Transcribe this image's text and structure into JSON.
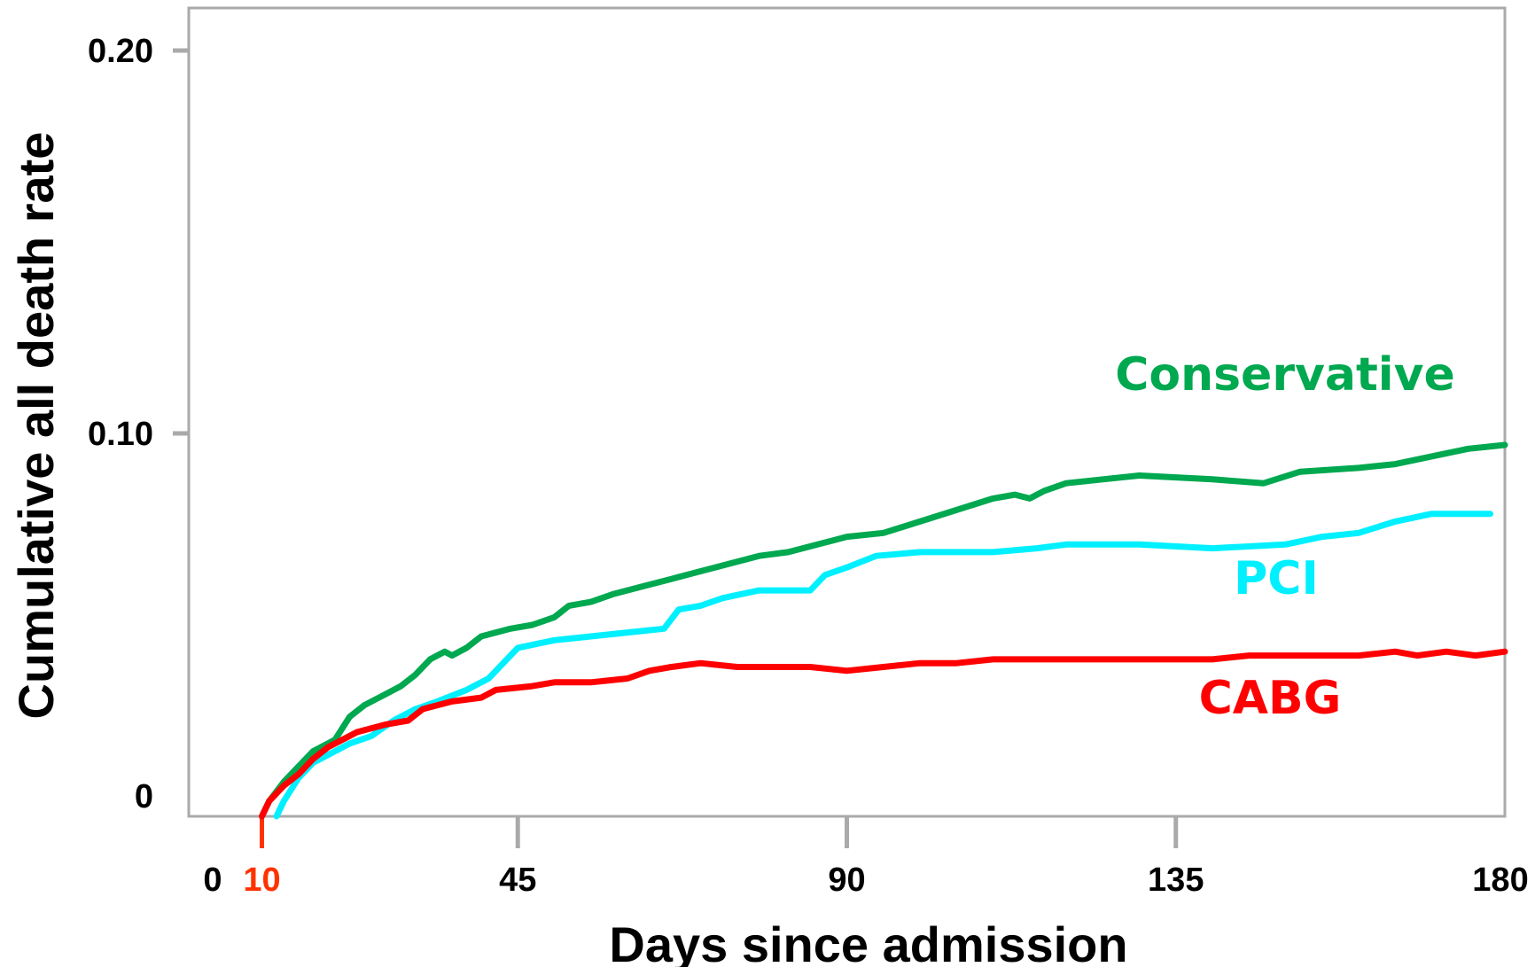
{
  "chart_data": {
    "type": "line",
    "title": "",
    "xlabel": "Days since admission",
    "ylabel": "Cumulative all death rate",
    "xlim": [
      0,
      180
    ],
    "ylim": [
      0,
      0.2
    ],
    "x_ticks": [
      {
        "value": 0,
        "label": "0"
      },
      {
        "value": 10,
        "label": "10",
        "color": "#ff3300"
      },
      {
        "value": 45,
        "label": "45"
      },
      {
        "value": 90,
        "label": "90"
      },
      {
        "value": 135,
        "label": "135"
      },
      {
        "value": 180,
        "label": "180"
      }
    ],
    "y_ticks": [
      {
        "value": 0,
        "label": "0"
      },
      {
        "value": 0.1,
        "label": "0.10"
      },
      {
        "value": 0.2,
        "label": "0.20"
      }
    ],
    "grid": false,
    "colors": {
      "axis": "#aaaaaa",
      "text": "#000000"
    },
    "series": [
      {
        "name": "Conservative",
        "color": "#00a84f",
        "points": [
          [
            10,
            0
          ],
          [
            11,
            0.004
          ],
          [
            13,
            0.009
          ],
          [
            15,
            0.013
          ],
          [
            17,
            0.017
          ],
          [
            20,
            0.02
          ],
          [
            22,
            0.026
          ],
          [
            24,
            0.029
          ],
          [
            27,
            0.032
          ],
          [
            29,
            0.034
          ],
          [
            31,
            0.037
          ],
          [
            33,
            0.041
          ],
          [
            35,
            0.043
          ],
          [
            36,
            0.042
          ],
          [
            38,
            0.044
          ],
          [
            40,
            0.047
          ],
          [
            42,
            0.048
          ],
          [
            44,
            0.049
          ],
          [
            47,
            0.05
          ],
          [
            50,
            0.052
          ],
          [
            52,
            0.055
          ],
          [
            55,
            0.056
          ],
          [
            58,
            0.058
          ],
          [
            62,
            0.06
          ],
          [
            66,
            0.062
          ],
          [
            70,
            0.064
          ],
          [
            74,
            0.066
          ],
          [
            78,
            0.068
          ],
          [
            82,
            0.069
          ],
          [
            86,
            0.071
          ],
          [
            88,
            0.072
          ],
          [
            90,
            0.073
          ],
          [
            95,
            0.074
          ],
          [
            100,
            0.077
          ],
          [
            105,
            0.08
          ],
          [
            110,
            0.083
          ],
          [
            113,
            0.084
          ],
          [
            115,
            0.083
          ],
          [
            117,
            0.085
          ],
          [
            120,
            0.087
          ],
          [
            125,
            0.088
          ],
          [
            130,
            0.089
          ],
          [
            140,
            0.088
          ],
          [
            147,
            0.087
          ],
          [
            152,
            0.09
          ],
          [
            160,
            0.091
          ],
          [
            165,
            0.092
          ],
          [
            170,
            0.094
          ],
          [
            175,
            0.096
          ],
          [
            180,
            0.097
          ]
        ]
      },
      {
        "name": "PCI",
        "color": "#00f0ff",
        "points": [
          [
            12,
            0
          ],
          [
            13,
            0.004
          ],
          [
            15,
            0.01
          ],
          [
            17,
            0.014
          ],
          [
            19,
            0.016
          ],
          [
            22,
            0.019
          ],
          [
            25,
            0.021
          ],
          [
            28,
            0.025
          ],
          [
            31,
            0.028
          ],
          [
            34,
            0.03
          ],
          [
            38,
            0.033
          ],
          [
            41,
            0.036
          ],
          [
            43,
            0.04
          ],
          [
            45,
            0.044
          ],
          [
            50,
            0.046
          ],
          [
            55,
            0.047
          ],
          [
            60,
            0.048
          ],
          [
            65,
            0.049
          ],
          [
            67,
            0.054
          ],
          [
            70,
            0.055
          ],
          [
            73,
            0.057
          ],
          [
            78,
            0.059
          ],
          [
            85,
            0.059
          ],
          [
            87,
            0.063
          ],
          [
            90,
            0.065
          ],
          [
            94,
            0.068
          ],
          [
            100,
            0.069
          ],
          [
            105,
            0.069
          ],
          [
            110,
            0.069
          ],
          [
            116,
            0.07
          ],
          [
            120,
            0.071
          ],
          [
            130,
            0.071
          ],
          [
            140,
            0.07
          ],
          [
            150,
            0.071
          ],
          [
            155,
            0.073
          ],
          [
            160,
            0.074
          ],
          [
            165,
            0.077
          ],
          [
            170,
            0.079
          ],
          [
            178,
            0.079
          ]
        ]
      },
      {
        "name": "CABG",
        "color": "#ff0000",
        "points": [
          [
            10,
            0
          ],
          [
            11,
            0.004
          ],
          [
            13,
            0.008
          ],
          [
            15,
            0.011
          ],
          [
            17,
            0.015
          ],
          [
            19,
            0.018
          ],
          [
            21,
            0.02
          ],
          [
            23,
            0.022
          ],
          [
            27,
            0.024
          ],
          [
            30,
            0.025
          ],
          [
            32,
            0.028
          ],
          [
            36,
            0.03
          ],
          [
            40,
            0.031
          ],
          [
            42,
            0.033
          ],
          [
            47,
            0.034
          ],
          [
            50,
            0.035
          ],
          [
            55,
            0.035
          ],
          [
            60,
            0.036
          ],
          [
            63,
            0.038
          ],
          [
            66,
            0.039
          ],
          [
            70,
            0.04
          ],
          [
            75,
            0.039
          ],
          [
            80,
            0.039
          ],
          [
            85,
            0.039
          ],
          [
            90,
            0.038
          ],
          [
            95,
            0.039
          ],
          [
            100,
            0.04
          ],
          [
            105,
            0.04
          ],
          [
            110,
            0.041
          ],
          [
            120,
            0.041
          ],
          [
            130,
            0.041
          ],
          [
            140,
            0.041
          ],
          [
            145,
            0.042
          ],
          [
            150,
            0.042
          ],
          [
            160,
            0.042
          ],
          [
            165,
            0.043
          ],
          [
            168,
            0.042
          ],
          [
            172,
            0.043
          ],
          [
            176,
            0.042
          ],
          [
            180,
            0.043
          ]
        ]
      }
    ]
  }
}
